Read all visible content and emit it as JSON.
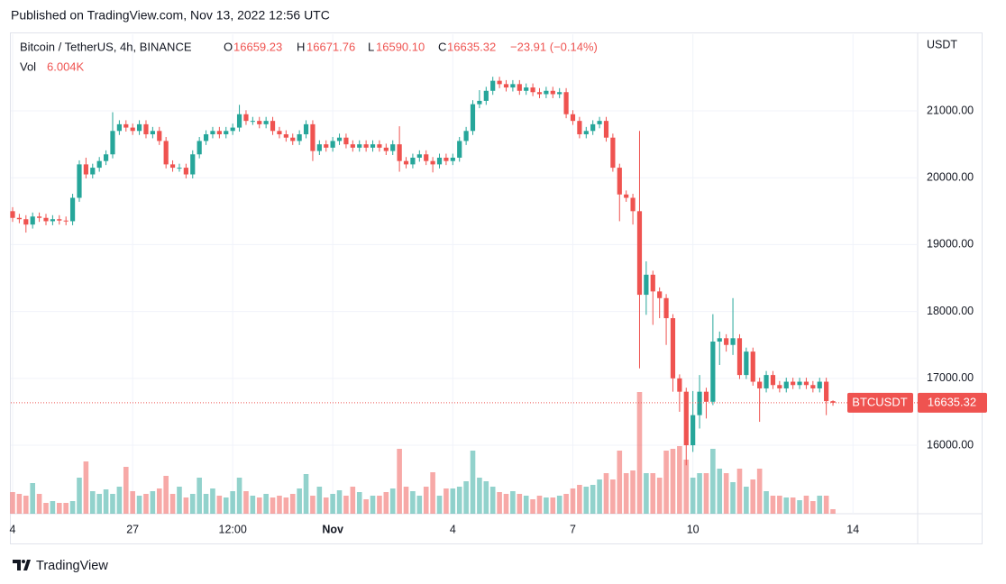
{
  "header": {
    "published": "Published on TradingView.com, Nov 13, 2022 12:56 UTC",
    "symbol": "Bitcoin / TetherUS, 4h, BINANCE",
    "o_label": "O",
    "o_value": "16659.23",
    "h_label": "H",
    "h_value": "16671.76",
    "l_label": "L",
    "l_value": "16590.10",
    "c_label": "C",
    "c_value": "16635.32",
    "change": "−23.91 (−0.14%)",
    "vol_label": "Vol",
    "vol_value": "6.004K",
    "currency": "USDT",
    "ticker_tag": "BTCUSDT",
    "last_price_tag": "16635.32"
  },
  "footer": {
    "brand": "TradingView"
  },
  "chart_data": {
    "type": "candlestick",
    "up_color": "#26a69a",
    "down_color": "#ef5350",
    "grid": true,
    "ylim": [
      14976,
      22146
    ],
    "xlim": [
      -0.27,
      135.7
    ],
    "yticks": [
      {
        "value": 16000,
        "label": "16000.00"
      },
      {
        "value": 17000,
        "label": "17000.00"
      },
      {
        "value": 18000,
        "label": "18000.00"
      },
      {
        "value": 19000,
        "label": "19000.00"
      },
      {
        "value": 20000,
        "label": "20000.00"
      },
      {
        "value": 21000,
        "label": "21000.00"
      }
    ],
    "xticks": [
      {
        "value": 0,
        "label": "4"
      },
      {
        "value": 18,
        "label": "27"
      },
      {
        "value": 33,
        "label": "12:00"
      },
      {
        "value": 48,
        "label": "Nov"
      },
      {
        "value": 66,
        "label": "4"
      },
      {
        "value": 84,
        "label": "7"
      },
      {
        "value": 102,
        "label": "10"
      },
      {
        "value": 126,
        "label": "14"
      }
    ],
    "open": [
      19500,
      19400,
      19380,
      19300,
      19420,
      19400,
      19350,
      19380,
      19360,
      19350,
      19700,
      20200,
      20050,
      20150,
      20250,
      20350,
      20700,
      20800,
      20750,
      20700,
      20800,
      20650,
      20700,
      20550,
      20200,
      20150,
      20150,
      20050,
      20350,
      20550,
      20650,
      20700,
      20650,
      20700,
      20750,
      20950,
      20850,
      20850,
      20800,
      20850,
      20700,
      20650,
      20600,
      20550,
      20650,
      20800,
      20400,
      20500,
      20450,
      20550,
      20600,
      20500,
      20450,
      20500,
      20450,
      20500,
      20450,
      20400,
      20500,
      20250,
      20200,
      20300,
      20350,
      20250,
      20200,
      20300,
      20250,
      20300,
      20550,
      20700,
      21100,
      21150,
      21300,
      21450,
      21400,
      21350,
      21400,
      21300,
      21350,
      21280,
      21250,
      21300,
      21250,
      21280,
      20950,
      20850,
      20650,
      20700,
      20800,
      20850,
      20600,
      20150,
      19750,
      19700,
      19500,
      18250,
      18550,
      18300,
      18200,
      17900,
      17000,
      16800,
      16000,
      16450,
      16800,
      16650,
      17550,
      17600,
      17500,
      17600,
      17050,
      17400,
      16950,
      16850,
      17050,
      16900,
      16850,
      16950,
      16900,
      16950,
      16900,
      16850,
      16950,
      16659.23
    ],
    "high": [
      19560,
      19460,
      19440,
      19480,
      19480,
      19460,
      19440,
      19440,
      19420,
      19760,
      20260,
      20300,
      20210,
      20310,
      20410,
      20980,
      20860,
      20860,
      20810,
      20860,
      20860,
      20760,
      20760,
      20610,
      20260,
      20210,
      20210,
      20410,
      20610,
      20710,
      20760,
      20760,
      20760,
      20810,
      21090,
      21010,
      20910,
      20910,
      20910,
      20910,
      20760,
      20710,
      20660,
      20710,
      20860,
      20860,
      20560,
      20560,
      20610,
      20660,
      20660,
      20560,
      20560,
      20560,
      20560,
      20560,
      20510,
      20560,
      20770,
      20310,
      20360,
      20410,
      20410,
      20310,
      20360,
      20360,
      20360,
      20610,
      20760,
      21160,
      21310,
      21360,
      21510,
      21510,
      21460,
      21460,
      21460,
      21410,
      21410,
      21340,
      21360,
      21360,
      21340,
      21340,
      21010,
      20910,
      20760,
      20860,
      20910,
      20910,
      20660,
      20210,
      19810,
      19760,
      20700,
      18750,
      18610,
      18360,
      18260,
      17960,
      17060,
      16860,
      16810,
      17050,
      16860,
      17960,
      17700,
      17660,
      18200,
      17660,
      17460,
      17460,
      17010,
      17110,
      17110,
      16960,
      17010,
      17010,
      17010,
      17010,
      16960,
      17010,
      17010,
      16671.76
    ],
    "low": [
      19340,
      19320,
      19180,
      19240,
      19340,
      19290,
      19290,
      19300,
      19290,
      19290,
      19640,
      19990,
      19990,
      20090,
      20190,
      20290,
      20640,
      20690,
      20640,
      20640,
      20590,
      20590,
      20490,
      20140,
      20090,
      20090,
      19990,
      19990,
      20290,
      20490,
      20590,
      20590,
      20590,
      20640,
      20690,
      20790,
      20790,
      20740,
      20740,
      20640,
      20590,
      20540,
      20490,
      20490,
      20590,
      20250,
      20340,
      20390,
      20390,
      20490,
      20440,
      20390,
      20390,
      20390,
      20390,
      20390,
      20340,
      20340,
      20090,
      20140,
      20140,
      20240,
      20190,
      20080,
      20140,
      20190,
      20190,
      20240,
      20490,
      20640,
      21040,
      21090,
      21240,
      21340,
      21290,
      21290,
      21240,
      21240,
      21220,
      21190,
      21190,
      21190,
      21190,
      20890,
      20790,
      20590,
      20590,
      20640,
      20740,
      20540,
      20090,
      19350,
      19640,
      19300,
      17150,
      17950,
      17800,
      17900,
      17500,
      16800,
      16500,
      15700,
      15900,
      16250,
      16400,
      16600,
      17200,
      17400,
      17350,
      16990,
      16990,
      16890,
      16350,
      16790,
      16840,
      16790,
      16790,
      16840,
      16840,
      16840,
      16790,
      16790,
      16450,
      16590.1
    ],
    "close": [
      19400,
      19380,
      19300,
      19420,
      19400,
      19350,
      19380,
      19360,
      19350,
      19700,
      20200,
      20050,
      20150,
      20250,
      20350,
      20700,
      20800,
      20750,
      20700,
      20800,
      20650,
      20700,
      20550,
      20200,
      20150,
      20150,
      20050,
      20350,
      20550,
      20650,
      20700,
      20650,
      20700,
      20750,
      20950,
      20850,
      20850,
      20800,
      20850,
      20700,
      20650,
      20600,
      20550,
      20650,
      20800,
      20400,
      20500,
      20450,
      20550,
      20600,
      20500,
      20450,
      20500,
      20450,
      20500,
      20450,
      20400,
      20500,
      20250,
      20200,
      20300,
      20350,
      20250,
      20200,
      20300,
      20250,
      20300,
      20550,
      20700,
      21100,
      21150,
      21300,
      21450,
      21400,
      21350,
      21400,
      21300,
      21350,
      21280,
      21250,
      21300,
      21250,
      21280,
      20950,
      20850,
      20650,
      20700,
      20800,
      20850,
      20600,
      20150,
      19750,
      19700,
      19500,
      18250,
      18550,
      18300,
      18200,
      17900,
      17000,
      16800,
      16000,
      16450,
      16800,
      16650,
      17550,
      17600,
      17500,
      17600,
      17050,
      17400,
      16950,
      16850,
      17050,
      16900,
      16850,
      16950,
      16900,
      16950,
      16900,
      16850,
      16950,
      16659.23,
      16635.32
    ],
    "volume": [
      28800,
      26400,
      24000,
      40800,
      26400,
      14400,
      16800,
      14400,
      14400,
      16800,
      48000,
      69600,
      30000,
      26400,
      32400,
      26400,
      36000,
      62400,
      30000,
      24000,
      26400,
      30000,
      33600,
      50400,
      26400,
      36000,
      21600,
      26400,
      48000,
      26400,
      33600,
      24000,
      21600,
      30000,
      48000,
      30000,
      24000,
      21600,
      26400,
      21600,
      24000,
      21600,
      26400,
      33600,
      52800,
      24000,
      36000,
      21600,
      26400,
      31200,
      24000,
      36000,
      28800,
      19200,
      24000,
      24000,
      28800,
      33600,
      86400,
      36000,
      30000,
      24000,
      36000,
      55200,
      24000,
      33600,
      33600,
      36000,
      43200,
      84000,
      48000,
      43200,
      36000,
      28800,
      26400,
      30000,
      26400,
      24000,
      19200,
      24000,
      21600,
      21600,
      24000,
      26400,
      33600,
      38400,
      36000,
      38400,
      45600,
      54000,
      45600,
      84000,
      54000,
      57600,
      162000,
      54000,
      54000,
      48000,
      84000,
      86400,
      90000,
      72000,
      48000,
      54000,
      54000,
      86400,
      60000,
      54000,
      42000,
      60000,
      36000,
      45600,
      60000,
      30000,
      24000,
      24000,
      21600,
      21600,
      18000,
      24000,
      16800,
      24000,
      24000,
      6004
    ]
  }
}
